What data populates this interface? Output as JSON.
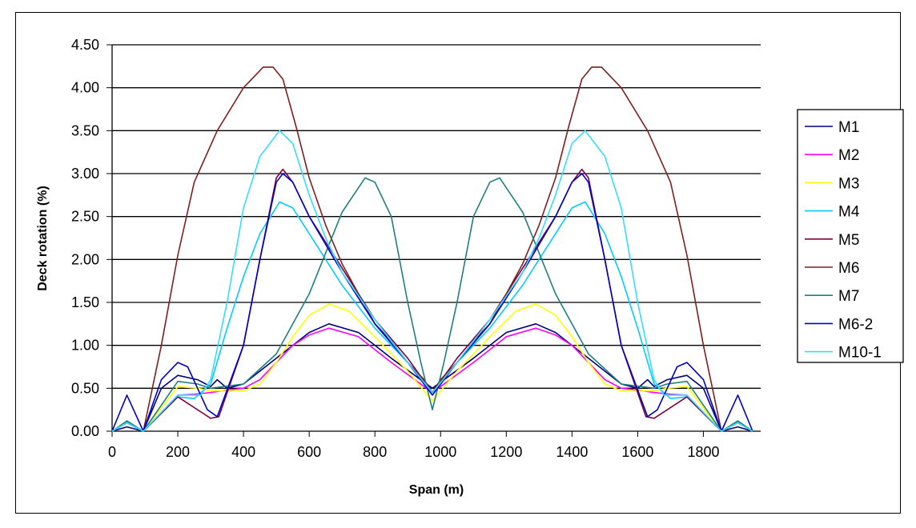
{
  "chart_data": {
    "type": "line",
    "title": "",
    "xlabel": "Span (m)",
    "ylabel": "Deck rotation (%)",
    "xlim": [
      0,
      1950
    ],
    "ylim": [
      0,
      4.5
    ],
    "xticks": [
      "0",
      "200",
      "400",
      "600",
      "800",
      "1000",
      "1200",
      "1400",
      "1600",
      "1800"
    ],
    "yticks": [
      "0.00",
      "0.50",
      "1.00",
      "1.50",
      "2.00",
      "2.50",
      "3.00",
      "3.50",
      "4.00",
      "4.50"
    ],
    "grid": "horizontal",
    "legend_position": "right",
    "symmetric_about_x": 975,
    "series": [
      {
        "name": "M1",
        "color": "#000080",
        "x": [
          0,
          45,
          95,
          150,
          200,
          260,
          300,
          320,
          350,
          400,
          500,
          600,
          660,
          750,
          850,
          975
        ],
        "y": [
          0,
          0.05,
          0,
          0.5,
          0.65,
          0.6,
          0.52,
          0.6,
          0.5,
          0.55,
          0.85,
          1.15,
          1.25,
          1.15,
          0.85,
          0.5
        ]
      },
      {
        "name": "M2",
        "color": "#FF00FF",
        "x": [
          0,
          45,
          95,
          200,
          250,
          300,
          350,
          400,
          450,
          500,
          550,
          600,
          660,
          750,
          850,
          975
        ],
        "y": [
          0,
          0.1,
          0,
          0.42,
          0.43,
          0.45,
          0.48,
          0.5,
          0.6,
          0.8,
          1.0,
          1.12,
          1.2,
          1.1,
          0.8,
          0.45
        ]
      },
      {
        "name": "M3",
        "color": "#FFFF00",
        "x": [
          0,
          45,
          95,
          200,
          260,
          300,
          400,
          450,
          500,
          550,
          600,
          660,
          720,
          800,
          900,
          975
        ],
        "y": [
          0,
          0.1,
          0,
          0.52,
          0.5,
          0.47,
          0.47,
          0.55,
          0.8,
          1.1,
          1.35,
          1.48,
          1.4,
          1.1,
          0.7,
          0.35
        ]
      },
      {
        "name": "M4",
        "color": "#00CCFF",
        "x": [
          0,
          45,
          95,
          200,
          250,
          300,
          350,
          400,
          450,
          510,
          550,
          600,
          700,
          800,
          900,
          975
        ],
        "y": [
          0,
          0.1,
          0,
          0.4,
          0.38,
          0.55,
          1.2,
          1.8,
          2.3,
          2.67,
          2.6,
          2.3,
          1.7,
          1.2,
          0.8,
          0.45
        ]
      },
      {
        "name": "M5",
        "color": "#800040",
        "x": [
          0,
          45,
          95,
          200,
          300,
          325,
          400,
          450,
          500,
          520,
          550,
          600,
          700,
          800,
          900,
          975
        ],
        "y": [
          0,
          0.1,
          0,
          0.4,
          0.15,
          0.17,
          1.0,
          2.0,
          2.95,
          3.05,
          2.9,
          2.5,
          1.9,
          1.3,
          0.85,
          0.45
        ]
      },
      {
        "name": "M6",
        "color": "#7F1F1F",
        "x": [
          0,
          45,
          95,
          150,
          200,
          250,
          320,
          400,
          460,
          490,
          520,
          560,
          600,
          650,
          700,
          750,
          800,
          850,
          900,
          950,
          975
        ],
        "y": [
          0,
          0.1,
          0,
          1.0,
          2.05,
          2.9,
          3.5,
          4.0,
          4.24,
          4.24,
          4.1,
          3.55,
          2.95,
          2.4,
          1.95,
          1.6,
          1.25,
          1.05,
          0.8,
          0.6,
          0.45
        ]
      },
      {
        "name": "M7",
        "color": "#1F7F7F",
        "x": [
          0,
          45,
          95,
          200,
          260,
          300,
          400,
          500,
          600,
          700,
          770,
          800,
          850,
          900,
          940,
          975
        ],
        "y": [
          0,
          0.12,
          0,
          0.58,
          0.55,
          0.5,
          0.55,
          0.9,
          1.6,
          2.55,
          2.95,
          2.9,
          2.5,
          1.5,
          0.8,
          0.25
        ]
      },
      {
        "name": "M6-2",
        "color": "#0000CC",
        "x": [
          0,
          45,
          95,
          150,
          200,
          230,
          290,
          320,
          400,
          450,
          500,
          520,
          550,
          600,
          700,
          800,
          900,
          975
        ],
        "y": [
          0,
          0.42,
          0,
          0.6,
          0.8,
          0.75,
          0.25,
          0.17,
          1.0,
          2.0,
          2.9,
          3.0,
          2.9,
          2.5,
          1.85,
          1.25,
          0.8,
          0.42
        ]
      },
      {
        "name": "M10-1",
        "color": "#33DDFF",
        "x": [
          0,
          45,
          95,
          200,
          270,
          300,
          350,
          400,
          450,
          510,
          550,
          600,
          650,
          700,
          800,
          900,
          975
        ],
        "y": [
          0,
          0.1,
          0,
          0.42,
          0.42,
          0.6,
          1.5,
          2.6,
          3.2,
          3.5,
          3.35,
          2.75,
          2.25,
          1.85,
          1.3,
          0.8,
          0.45
        ]
      }
    ]
  }
}
